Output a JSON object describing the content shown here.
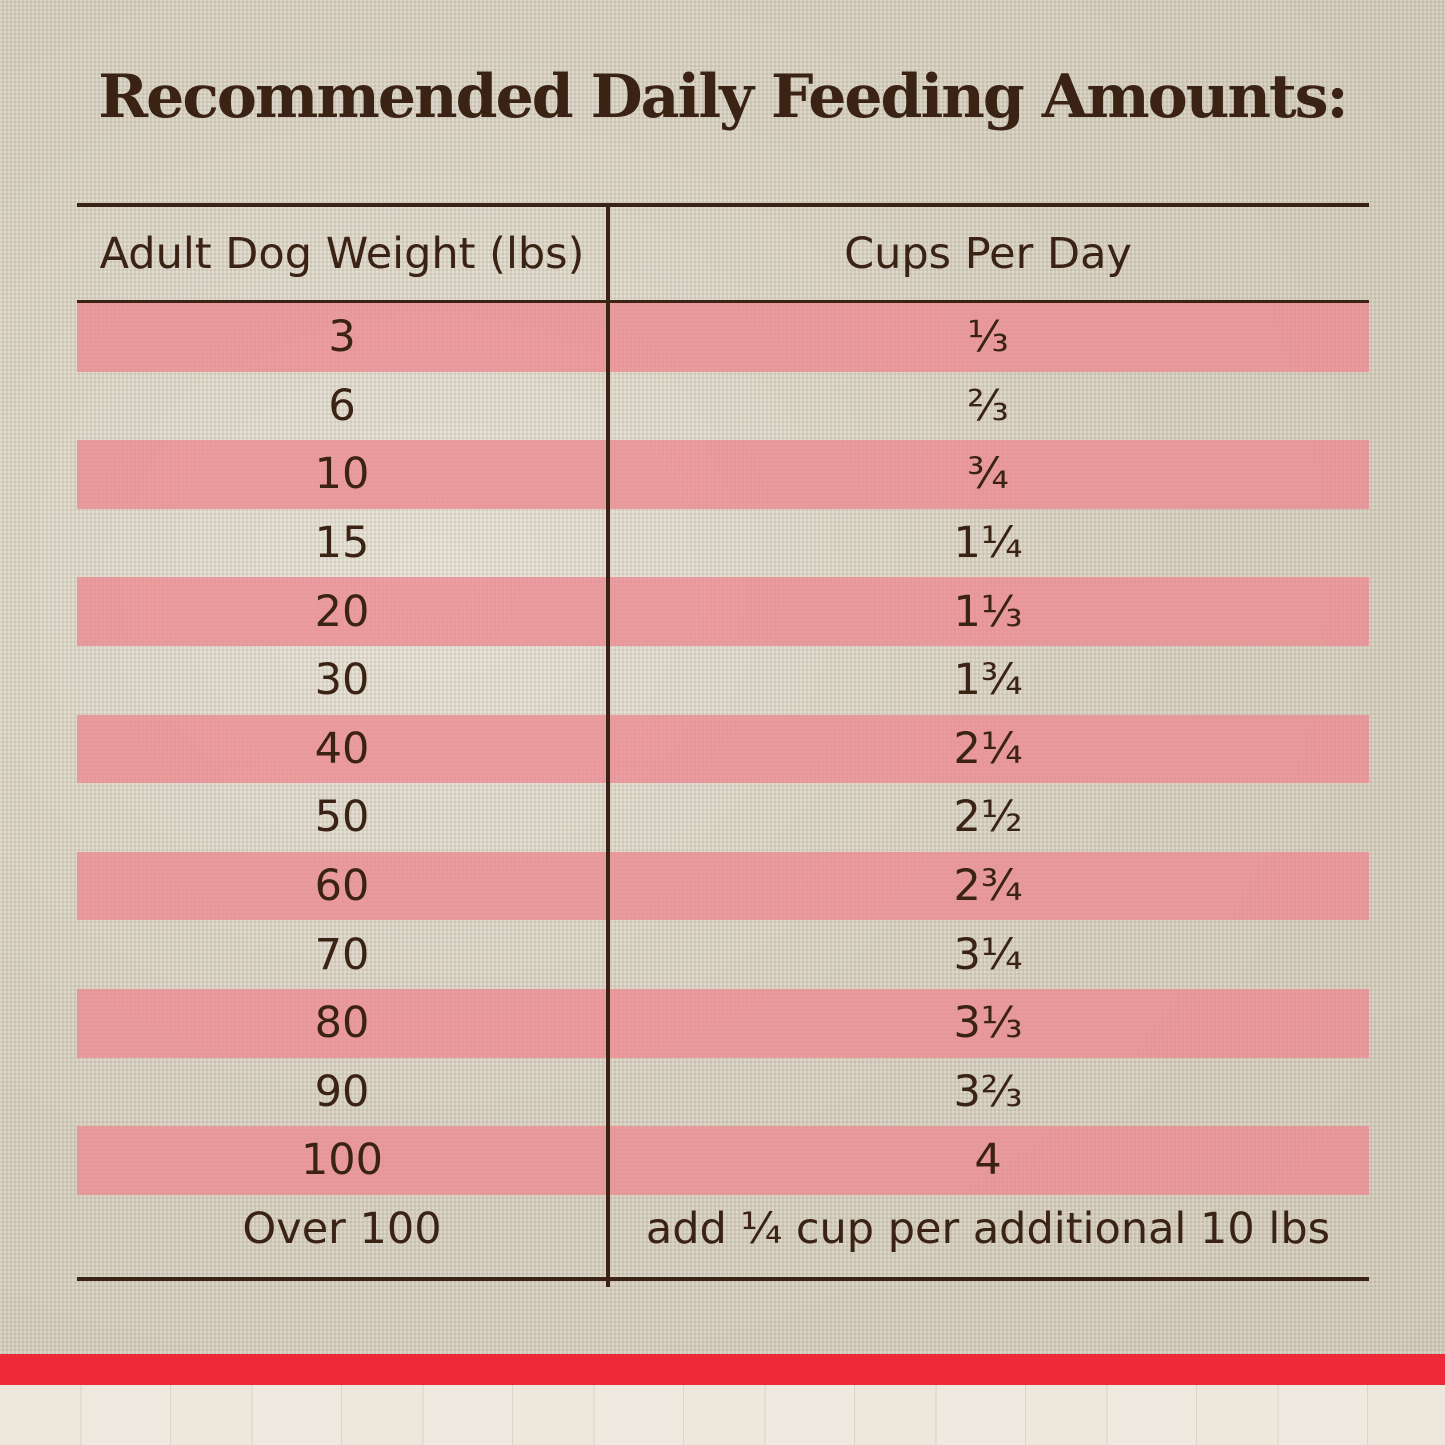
{
  "title": "Recommended Daily Feeding Amounts:",
  "table": {
    "headers": [
      "Adult Dog Weight (lbs)",
      "Cups Per Day"
    ],
    "rows": [
      {
        "weight": "3",
        "cups": "⅓"
      },
      {
        "weight": "6",
        "cups": "⅔"
      },
      {
        "weight": "10",
        "cups": "¾"
      },
      {
        "weight": "15",
        "cups": "1¼"
      },
      {
        "weight": "20",
        "cups": "1⅓"
      },
      {
        "weight": "30",
        "cups": "1¾"
      },
      {
        "weight": "40",
        "cups": "2¼"
      },
      {
        "weight": "50",
        "cups": "2½"
      },
      {
        "weight": "60",
        "cups": "2¾"
      },
      {
        "weight": "70",
        "cups": "3¼"
      },
      {
        "weight": "80",
        "cups": "3⅓"
      },
      {
        "weight": "90",
        "cups": "3⅔"
      },
      {
        "weight": "100",
        "cups": "4"
      },
      {
        "weight": "Over 100",
        "cups": "add ¼ cup per additional 10 lbs"
      }
    ]
  },
  "colors": {
    "text": "#3a2314",
    "stripe": "#ec8c92",
    "accent_band": "#ee2a38"
  }
}
